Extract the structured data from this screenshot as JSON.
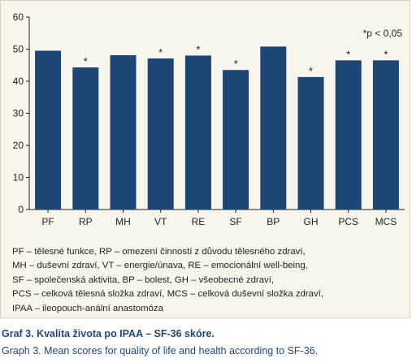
{
  "chart_data": {
    "type": "bar",
    "categories": [
      "PF",
      "RP",
      "MH",
      "VT",
      "RE",
      "SF",
      "BP",
      "GH",
      "PCS",
      "MCS"
    ],
    "values": [
      49.5,
      44.3,
      48.1,
      47.1,
      48.0,
      43.5,
      50.8,
      41.3,
      46.5,
      46.5
    ],
    "significant": [
      false,
      true,
      false,
      true,
      true,
      true,
      false,
      true,
      true,
      true
    ],
    "significance_marker": "*",
    "annotation": "*p < 0,05",
    "y_ticks": [
      "0",
      "10",
      "20",
      "30",
      "40",
      "50",
      "60"
    ],
    "ylim": [
      0,
      60
    ],
    "grid": false,
    "bar_color": "#1c4775"
  },
  "legend_lines": [
    "PF – tělesné funkce, RP – omezení činností z důvodu tělesného zdraví,",
    "MH – duševní zdraví, VT – energie/únava, RE – emocionální well-being,",
    "SF – společenská aktivita, BP – bolest, GH – všeobecné zdraví,",
    "PCS – celková tělesná složka zdraví, MCS – celková duševní složka zdraví,",
    "IPAA – ileopouch-anální anastomóza"
  ],
  "caption": {
    "title": "Graf 3. Kvalita života po IPAA – SF-36 skóre.",
    "subtitle": "Graph 3. Mean scores for quality of life and health according to SF-36."
  }
}
